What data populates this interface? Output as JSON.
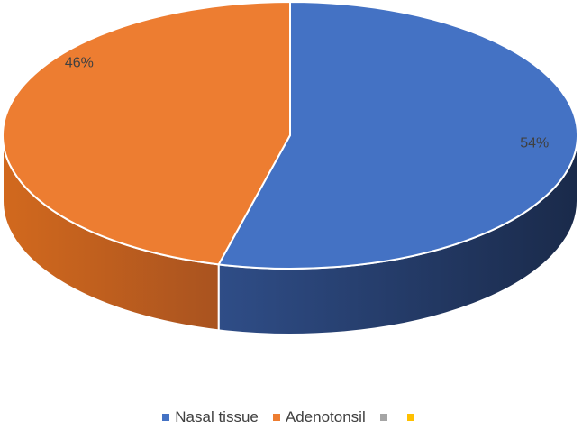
{
  "chart_data": {
    "type": "pie",
    "style": "3d",
    "categories": [
      "Nasal tissue",
      "Adenotonsil",
      "",
      ""
    ],
    "values": [
      54,
      46,
      0,
      0
    ],
    "labels": [
      "54%",
      "46%"
    ],
    "colors": [
      "#4472C4",
      "#ED7D31",
      "#A5A5A5",
      "#FFC000"
    ],
    "legend": "bottom",
    "title": ""
  },
  "legend": {
    "items": [
      {
        "label": "Nasal tissue",
        "color": "#4472C4"
      },
      {
        "label": "Adenotonsil",
        "color": "#ED7D31"
      },
      {
        "label": "",
        "color": "#A5A5A5"
      },
      {
        "label": "",
        "color": "#FFC000"
      }
    ]
  }
}
